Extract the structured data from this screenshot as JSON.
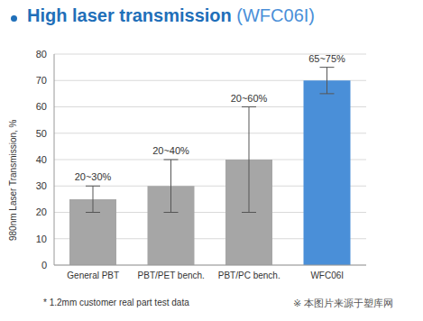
{
  "chart_data": {
    "type": "bar",
    "title": "High laser transmission",
    "subtitle": "(WFC06I)",
    "y_label": "980nm Laser Transmission, %",
    "categories": [
      "General PBT",
      "PBT/PET bench.",
      "PBT/PC bench.",
      "WFC06I"
    ],
    "values": [
      25,
      30,
      40,
      70
    ],
    "ranges": [
      [
        20,
        30
      ],
      [
        20,
        40
      ],
      [
        20,
        60
      ],
      [
        65,
        75
      ]
    ],
    "range_labels": [
      "20~30%",
      "20~40%",
      "20~60%",
      "65~75%"
    ],
    "colors": [
      "#a6a6a6",
      "#a6a6a6",
      "#a6a6a6",
      "#4a8fd8"
    ],
    "ylim": [
      0,
      80
    ],
    "yticks": [
      0,
      10,
      20,
      30,
      40,
      50,
      60,
      70,
      80
    ],
    "grid": true,
    "footnote": "* 1.2mm customer real part test data",
    "source_note": "※ 本图片来源于塑库网"
  }
}
